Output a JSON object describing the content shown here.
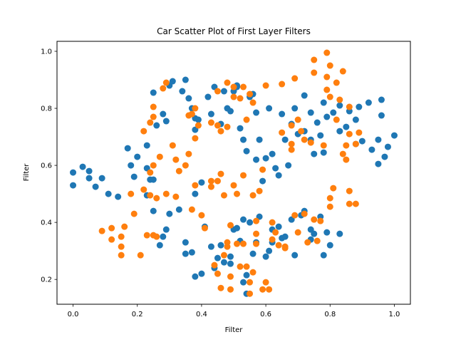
{
  "chart_data": {
    "type": "scatter",
    "title": "Car Scatter Plot of First Layer Filters",
    "xlabel": "Filter",
    "ylabel": "Filter",
    "xlim": [
      -0.05,
      1.05
    ],
    "ylim": [
      0.113,
      1.035
    ],
    "xticks": [
      0.0,
      0.2,
      0.4,
      0.6,
      0.8,
      1.0
    ],
    "xtick_labels": [
      "0.0",
      "0.2",
      "0.4",
      "0.6",
      "0.8",
      "1.0"
    ],
    "yticks": [
      0.2,
      0.4,
      0.6,
      0.8,
      1.0
    ],
    "ytick_labels": [
      "0.2",
      "0.4",
      "0.6",
      "0.8",
      "1.0"
    ],
    "grid": false,
    "legend": "none",
    "series": [
      {
        "color": "#1f77b4",
        "points": [
          [
            0.0,
            0.575
          ],
          [
            0.0,
            0.53
          ],
          [
            0.03,
            0.595
          ],
          [
            0.05,
            0.555
          ],
          [
            0.05,
            0.58
          ],
          [
            0.07,
            0.525
          ],
          [
            0.09,
            0.555
          ],
          [
            0.11,
            0.5
          ],
          [
            0.14,
            0.49
          ],
          [
            0.17,
            0.66
          ],
          [
            0.18,
            0.6
          ],
          [
            0.2,
            0.63
          ],
          [
            0.19,
            0.56
          ],
          [
            0.23,
            0.59
          ],
          [
            0.24,
            0.55
          ],
          [
            0.23,
            0.67
          ],
          [
            0.23,
            0.495
          ],
          [
            0.25,
            0.44
          ],
          [
            0.25,
            0.855
          ],
          [
            0.26,
            0.74
          ],
          [
            0.28,
            0.78
          ],
          [
            0.29,
            0.755
          ],
          [
            0.3,
            0.88
          ],
          [
            0.31,
            0.895
          ],
          [
            0.34,
            0.86
          ],
          [
            0.35,
            0.9
          ],
          [
            0.36,
            0.835
          ],
          [
            0.37,
            0.8
          ],
          [
            0.38,
            0.765
          ],
          [
            0.38,
            0.725
          ],
          [
            0.39,
            0.76
          ],
          [
            0.42,
            0.84
          ],
          [
            0.43,
            0.78
          ],
          [
            0.44,
            0.875
          ],
          [
            0.46,
            0.745
          ],
          [
            0.47,
            0.86
          ],
          [
            0.48,
            0.8
          ],
          [
            0.49,
            0.79
          ],
          [
            0.5,
            0.86
          ],
          [
            0.51,
            0.88
          ],
          [
            0.51,
            0.875
          ],
          [
            0.52,
            0.73
          ],
          [
            0.53,
            0.69
          ],
          [
            0.54,
            0.65
          ],
          [
            0.55,
            0.84
          ],
          [
            0.56,
            0.85
          ],
          [
            0.57,
            0.785
          ],
          [
            0.57,
            0.62
          ],
          [
            0.58,
            0.69
          ],
          [
            0.59,
            0.545
          ],
          [
            0.6,
            0.625
          ],
          [
            0.61,
            0.8
          ],
          [
            0.62,
            0.64
          ],
          [
            0.63,
            0.59
          ],
          [
            0.64,
            0.565
          ],
          [
            0.65,
            0.78
          ],
          [
            0.66,
            0.69
          ],
          [
            0.67,
            0.6
          ],
          [
            0.68,
            0.745
          ],
          [
            0.69,
            0.8
          ],
          [
            0.7,
            0.71
          ],
          [
            0.72,
            0.72
          ],
          [
            0.72,
            0.845
          ],
          [
            0.74,
            0.785
          ],
          [
            0.74,
            0.69
          ],
          [
            0.75,
            0.64
          ],
          [
            0.76,
            0.75
          ],
          [
            0.77,
            0.705
          ],
          [
            0.78,
            0.82
          ],
          [
            0.78,
            0.645
          ],
          [
            0.79,
            0.77
          ],
          [
            0.81,
            0.785
          ],
          [
            0.83,
            0.72
          ],
          [
            0.83,
            0.81
          ],
          [
            0.85,
            0.735
          ],
          [
            0.86,
            0.79
          ],
          [
            0.88,
            0.76
          ],
          [
            0.88,
            0.675
          ],
          [
            0.89,
            0.805
          ],
          [
            0.9,
            0.685
          ],
          [
            0.92,
            0.82
          ],
          [
            0.93,
            0.655
          ],
          [
            0.95,
            0.69
          ],
          [
            0.95,
            0.605
          ],
          [
            0.96,
            0.83
          ],
          [
            0.96,
            0.775
          ],
          [
            0.97,
            0.63
          ],
          [
            0.98,
            0.665
          ],
          [
            1.0,
            0.705
          ],
          [
            0.25,
            0.55
          ],
          [
            0.27,
            0.32
          ],
          [
            0.28,
            0.35
          ],
          [
            0.29,
            0.375
          ],
          [
            0.3,
            0.43
          ],
          [
            0.33,
            0.445
          ],
          [
            0.35,
            0.33
          ],
          [
            0.35,
            0.29
          ],
          [
            0.37,
            0.295
          ],
          [
            0.38,
            0.21
          ],
          [
            0.4,
            0.22
          ],
          [
            0.41,
            0.385
          ],
          [
            0.43,
            0.315
          ],
          [
            0.44,
            0.24
          ],
          [
            0.45,
            0.275
          ],
          [
            0.46,
            0.32
          ],
          [
            0.47,
            0.26
          ],
          [
            0.49,
            0.28
          ],
          [
            0.49,
            0.255
          ],
          [
            0.5,
            0.375
          ],
          [
            0.51,
            0.38
          ],
          [
            0.52,
            0.335
          ],
          [
            0.53,
            0.19
          ],
          [
            0.53,
            0.41
          ],
          [
            0.54,
            0.215
          ],
          [
            0.54,
            0.15
          ],
          [
            0.55,
            0.4
          ],
          [
            0.56,
            0.29
          ],
          [
            0.57,
            0.33
          ],
          [
            0.58,
            0.42
          ],
          [
            0.6,
            0.28
          ],
          [
            0.61,
            0.3
          ],
          [
            0.62,
            0.375
          ],
          [
            0.62,
            0.33
          ],
          [
            0.64,
            0.385
          ],
          [
            0.65,
            0.345
          ],
          [
            0.66,
            0.35
          ],
          [
            0.68,
            0.41
          ],
          [
            0.69,
            0.285
          ],
          [
            0.71,
            0.425
          ],
          [
            0.72,
            0.44
          ],
          [
            0.74,
            0.375
          ],
          [
            0.74,
            0.34
          ],
          [
            0.75,
            0.36
          ],
          [
            0.77,
            0.42
          ],
          [
            0.78,
            0.285
          ],
          [
            0.79,
            0.365
          ],
          [
            0.8,
            0.32
          ],
          [
            0.83,
            0.36
          ],
          [
            0.38,
            0.5
          ],
          [
            0.4,
            0.54
          ]
        ]
      },
      {
        "color": "#ff7f0e",
        "points": [
          [
            0.09,
            0.37
          ],
          [
            0.12,
            0.38
          ],
          [
            0.12,
            0.34
          ],
          [
            0.15,
            0.35
          ],
          [
            0.15,
            0.315
          ],
          [
            0.15,
            0.285
          ],
          [
            0.16,
            0.385
          ],
          [
            0.18,
            0.5
          ],
          [
            0.19,
            0.43
          ],
          [
            0.21,
            0.285
          ],
          [
            0.22,
            0.515
          ],
          [
            0.22,
            0.72
          ],
          [
            0.23,
            0.355
          ],
          [
            0.24,
            0.575
          ],
          [
            0.24,
            0.495
          ],
          [
            0.25,
            0.355
          ],
          [
            0.26,
            0.35
          ],
          [
            0.26,
            0.485
          ],
          [
            0.27,
            0.63
          ],
          [
            0.25,
            0.6
          ],
          [
            0.24,
            0.75
          ],
          [
            0.25,
            0.77
          ],
          [
            0.25,
            0.805
          ],
          [
            0.28,
            0.87
          ],
          [
            0.29,
            0.89
          ],
          [
            0.29,
            0.5
          ],
          [
            0.31,
            0.67
          ],
          [
            0.32,
            0.49
          ],
          [
            0.32,
            0.62
          ],
          [
            0.33,
            0.58
          ],
          [
            0.35,
            0.6
          ],
          [
            0.36,
            0.64
          ],
          [
            0.36,
            0.775
          ],
          [
            0.37,
            0.78
          ],
          [
            0.37,
            0.445
          ],
          [
            0.38,
            0.53
          ],
          [
            0.38,
            0.695
          ],
          [
            0.38,
            0.8
          ],
          [
            0.39,
            0.74
          ],
          [
            0.4,
            0.425
          ],
          [
            0.41,
            0.38
          ],
          [
            0.43,
            0.75
          ],
          [
            0.43,
            0.545
          ],
          [
            0.43,
            0.525
          ],
          [
            0.45,
            0.545
          ],
          [
            0.45,
            0.86
          ],
          [
            0.45,
            0.74
          ],
          [
            0.46,
            0.72
          ],
          [
            0.46,
            0.57
          ],
          [
            0.47,
            0.495
          ],
          [
            0.48,
            0.89
          ],
          [
            0.48,
            0.735
          ],
          [
            0.49,
            0.39
          ],
          [
            0.5,
            0.84
          ],
          [
            0.5,
            0.875
          ],
          [
            0.5,
            0.53
          ],
          [
            0.51,
            0.5
          ],
          [
            0.52,
            0.835
          ],
          [
            0.53,
            0.875
          ],
          [
            0.53,
            0.565
          ],
          [
            0.54,
            0.76
          ],
          [
            0.55,
            0.85
          ],
          [
            0.56,
            0.82
          ],
          [
            0.56,
            0.495
          ],
          [
            0.57,
            0.405
          ],
          [
            0.58,
            0.51
          ],
          [
            0.59,
            0.585
          ],
          [
            0.6,
            0.88
          ],
          [
            0.62,
            0.4
          ],
          [
            0.63,
            0.365
          ],
          [
            0.65,
            0.715
          ],
          [
            0.65,
            0.885
          ],
          [
            0.66,
            0.315
          ],
          [
            0.68,
            0.655
          ],
          [
            0.68,
            0.675
          ],
          [
            0.68,
            0.74
          ],
          [
            0.69,
            0.905
          ],
          [
            0.69,
            0.425
          ],
          [
            0.7,
            0.365
          ],
          [
            0.7,
            0.76
          ],
          [
            0.71,
            0.72
          ],
          [
            0.72,
            0.69
          ],
          [
            0.72,
            0.43
          ],
          [
            0.73,
            0.33
          ],
          [
            0.74,
            0.68
          ],
          [
            0.75,
            0.41
          ],
          [
            0.75,
            0.925
          ],
          [
            0.75,
            0.97
          ],
          [
            0.76,
            0.335
          ],
          [
            0.77,
            0.405
          ],
          [
            0.78,
            0.67
          ],
          [
            0.79,
            0.865
          ],
          [
            0.79,
            0.91
          ],
          [
            0.79,
            0.995
          ],
          [
            0.8,
            0.95
          ],
          [
            0.8,
            0.84
          ],
          [
            0.8,
            0.485
          ],
          [
            0.8,
            0.455
          ],
          [
            0.81,
            0.52
          ],
          [
            0.82,
            0.89
          ],
          [
            0.82,
            0.76
          ],
          [
            0.83,
            0.83
          ],
          [
            0.84,
            0.64
          ],
          [
            0.84,
            0.93
          ],
          [
            0.85,
            0.67
          ],
          [
            0.85,
            0.62
          ],
          [
            0.86,
            0.805
          ],
          [
            0.86,
            0.71
          ],
          [
            0.86,
            0.51
          ],
          [
            0.86,
            0.465
          ],
          [
            0.88,
            0.465
          ],
          [
            0.88,
            0.675
          ],
          [
            0.89,
            0.715
          ],
          [
            0.44,
            0.25
          ],
          [
            0.45,
            0.22
          ],
          [
            0.46,
            0.17
          ],
          [
            0.47,
            0.285
          ],
          [
            0.48,
            0.33
          ],
          [
            0.48,
            0.315
          ],
          [
            0.49,
            0.21
          ],
          [
            0.49,
            0.165
          ],
          [
            0.51,
            0.325
          ],
          [
            0.52,
            0.245
          ],
          [
            0.53,
            0.325
          ],
          [
            0.54,
            0.245
          ],
          [
            0.55,
            0.15
          ],
          [
            0.55,
            0.19
          ],
          [
            0.56,
            0.225
          ],
          [
            0.57,
            0.36
          ],
          [
            0.57,
            0.325
          ],
          [
            0.59,
            0.165
          ],
          [
            0.6,
            0.19
          ],
          [
            0.61,
            0.165
          ],
          [
            0.62,
            0.34
          ],
          [
            0.64,
            0.32
          ],
          [
            0.66,
            0.31
          ]
        ]
      }
    ]
  }
}
